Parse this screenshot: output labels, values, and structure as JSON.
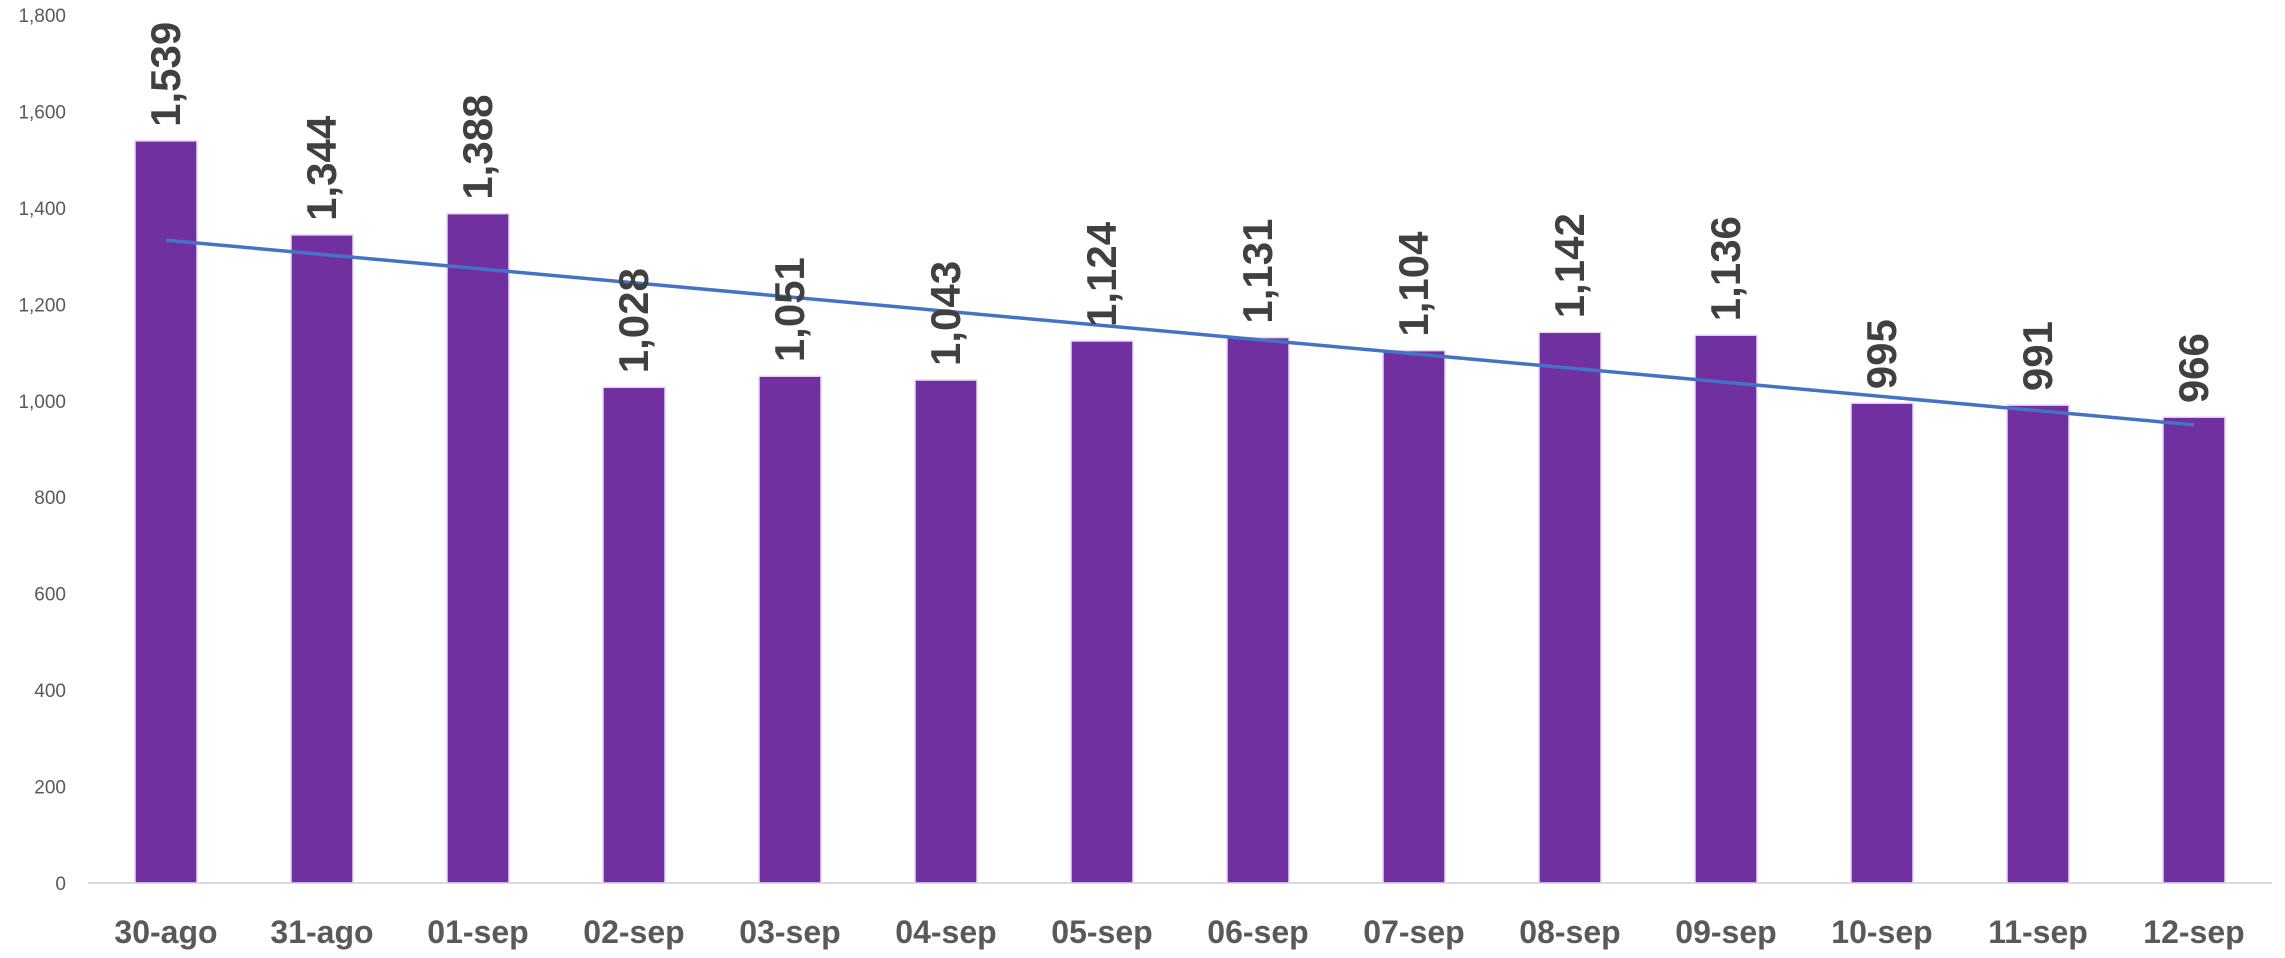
{
  "chart_data": {
    "type": "bar",
    "title": "",
    "xlabel": "",
    "ylabel": "",
    "categories": [
      "30-ago",
      "31-ago",
      "01-sep",
      "02-sep",
      "03-sep",
      "04-sep",
      "05-sep",
      "06-sep",
      "07-sep",
      "08-sep",
      "09-sep",
      "10-sep",
      "11-sep",
      "12-sep"
    ],
    "values": [
      1539,
      1344,
      1388,
      1028,
      1051,
      1043,
      1124,
      1131,
      1104,
      1142,
      1136,
      995,
      991,
      966
    ],
    "data_labels": [
      "1,539",
      "1,344",
      "1,388",
      "1,028",
      "1,051",
      "1,043",
      "1,124",
      "1,131",
      "1,104",
      "1,142",
      "1,136",
      "995",
      "991",
      "966"
    ],
    "ylim": [
      0,
      1800
    ],
    "yticks": [
      0,
      200,
      400,
      600,
      800,
      1000,
      1200,
      1400,
      1600,
      1800
    ],
    "ytick_labels": [
      "0",
      "200",
      "400",
      "600",
      "800",
      "1,000",
      "1,200",
      "1,400",
      "1,600",
      "1,800"
    ],
    "trendline": {
      "type": "linear",
      "start": 1333,
      "end": 950,
      "color": "#4472C4"
    },
    "bar_color": "#7030A0",
    "grid": false,
    "legend": "none"
  }
}
